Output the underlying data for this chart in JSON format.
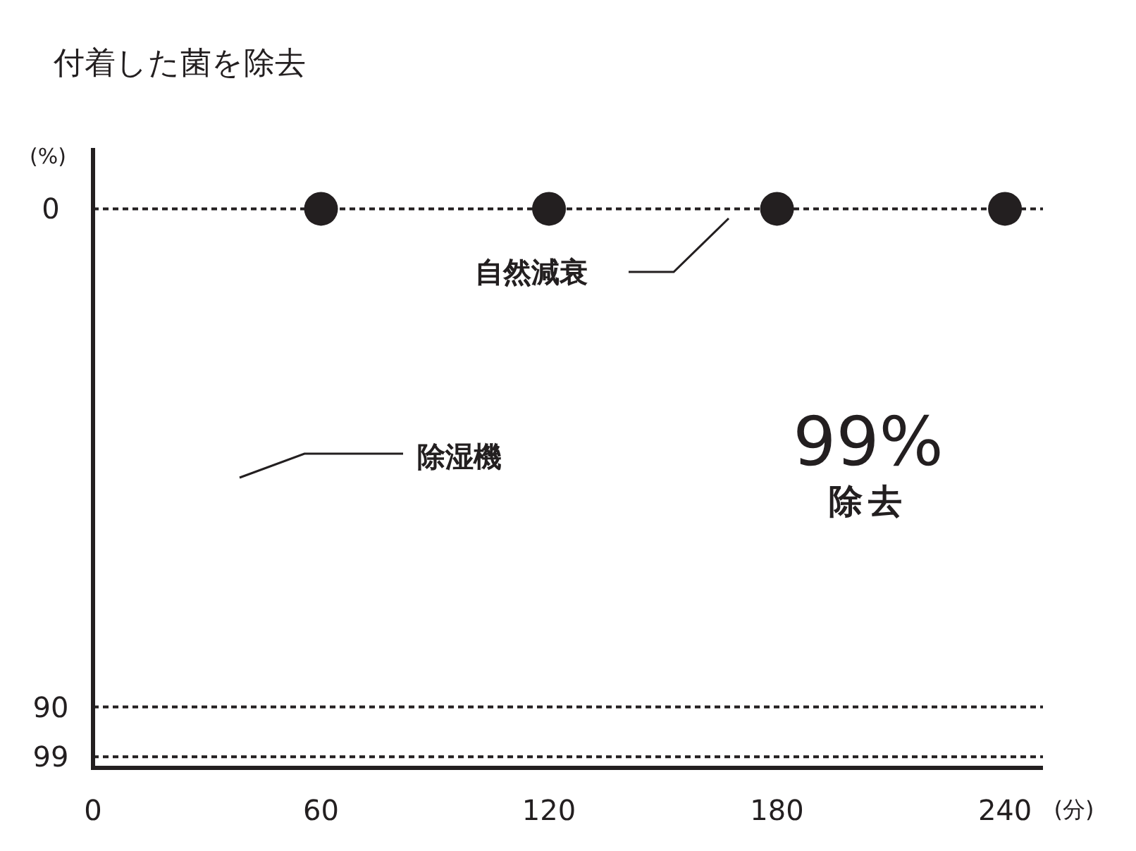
{
  "chart_data": {
    "type": "scatter",
    "title": "付着した菌を除去",
    "ylabel": "(%)",
    "xlabel": "(分)",
    "xlim": [
      0,
      250
    ],
    "xticks": [
      0,
      60,
      120,
      180,
      240
    ],
    "ylim": [
      101,
      -11
    ],
    "yticks": [
      0,
      90,
      99
    ],
    "series": [
      {
        "name": "自然減衰",
        "color": "#231f20",
        "x": [
          60,
          120,
          180,
          240
        ],
        "values": [
          0,
          0,
          0,
          0
        ]
      }
    ],
    "ref_lines": [
      {
        "axis": "y",
        "value": 0,
        "line_style": "dotted",
        "color": "#231f20"
      },
      {
        "axis": "y",
        "value": 90,
        "line_style": "dotted",
        "color": "#231f20"
      },
      {
        "axis": "y",
        "value": 99,
        "line_style": "dotted",
        "color": "#231f20"
      }
    ],
    "annotations": [
      "除湿機",
      "99%",
      "除去"
    ],
    "marker": "circle",
    "legend": false,
    "grid": false
  }
}
